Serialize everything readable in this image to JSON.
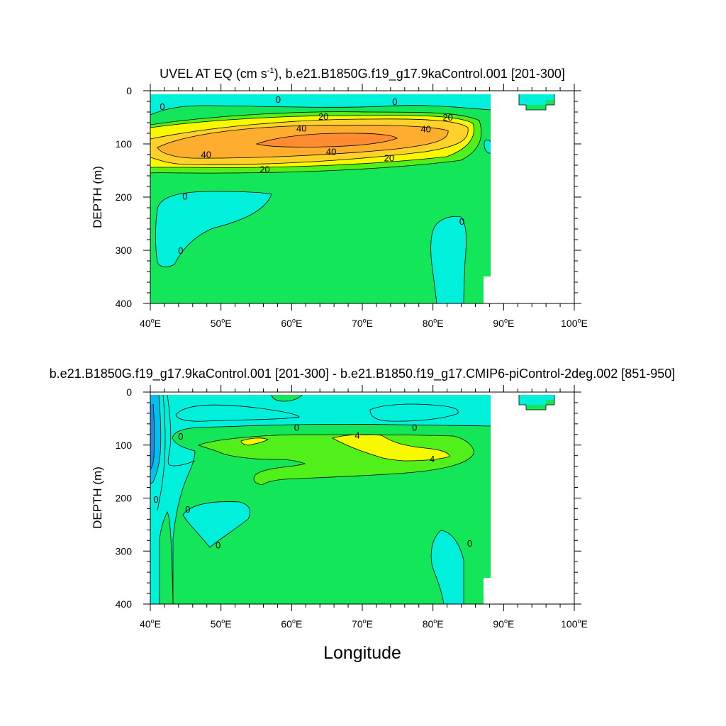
{
  "chart_data": [
    {
      "type": "contour",
      "title_main": "UVEL AT EQ (cm s",
      "title_sup": "-1",
      "title_rest": "), b.e21.B1850G.f19_g17.9kaControl.001 [201-300]",
      "ylabel": "DEPTH (m)",
      "xlabel": "",
      "xlim": [
        40,
        100
      ],
      "ylim": [
        0,
        400
      ],
      "y_inverted": true,
      "xticks": [
        {
          "value": 40,
          "label": "40",
          "suffix": "E"
        },
        {
          "value": 50,
          "label": "50",
          "suffix": "E"
        },
        {
          "value": 60,
          "label": "60",
          "suffix": "E"
        },
        {
          "value": 70,
          "label": "70",
          "suffix": "E"
        },
        {
          "value": 80,
          "label": "80",
          "suffix": "E"
        },
        {
          "value": 90,
          "label": "90",
          "suffix": "E"
        },
        {
          "value": 100,
          "label": "100",
          "suffix": "E"
        }
      ],
      "yticks": [
        "0",
        "100",
        "200",
        "300",
        "400"
      ],
      "contour_labels": [
        {
          "x": 41.7,
          "y": 29,
          "text": "0"
        },
        {
          "x": 58.1,
          "y": 16,
          "text": "0"
        },
        {
          "x": 74.6,
          "y": 20,
          "text": "0"
        },
        {
          "x": 44.9,
          "y": 198,
          "text": "0"
        },
        {
          "x": 44.3,
          "y": 300,
          "text": "0"
        },
        {
          "x": 84.1,
          "y": 245,
          "text": "0"
        },
        {
          "x": 64.5,
          "y": 48,
          "text": "20"
        },
        {
          "x": 82.1,
          "y": 49,
          "text": "20"
        },
        {
          "x": 73.8,
          "y": 126,
          "text": "20"
        },
        {
          "x": 56.2,
          "y": 147,
          "text": "20"
        },
        {
          "x": 61.4,
          "y": 70,
          "text": "40"
        },
        {
          "x": 79.0,
          "y": 71,
          "text": "40"
        },
        {
          "x": 47.9,
          "y": 119,
          "text": "40"
        },
        {
          "x": 65.6,
          "y": 114,
          "text": "40"
        }
      ]
    },
    {
      "type": "contour",
      "title": "b.e21.B1850G.f19_g17.9kaControl.001 [201-300] - b.e21.B1850.f19_g17.CMIP6-piControl-2deg.002 [851-950]",
      "ylabel": "DEPTH (m)",
      "xlabel": "Longitude",
      "xlim": [
        40,
        100
      ],
      "ylim": [
        0,
        400
      ],
      "y_inverted": true,
      "xticks": [
        {
          "value": 40,
          "label": "40",
          "suffix": "E"
        },
        {
          "value": 50,
          "label": "50",
          "suffix": "E"
        },
        {
          "value": 60,
          "label": "60",
          "suffix": "E"
        },
        {
          "value": 70,
          "label": "70",
          "suffix": "E"
        },
        {
          "value": 80,
          "label": "80",
          "suffix": "E"
        },
        {
          "value": 90,
          "label": "90",
          "suffix": "E"
        },
        {
          "value": 100,
          "label": "100",
          "suffix": "E"
        }
      ],
      "yticks": [
        "0",
        "100",
        "200",
        "300",
        "400"
      ],
      "contour_labels": [
        {
          "x": 44.3,
          "y": 83,
          "text": "0"
        },
        {
          "x": 60.7,
          "y": 66,
          "text": "0"
        },
        {
          "x": 77.4,
          "y": 66,
          "text": "0"
        },
        {
          "x": 40.8,
          "y": 202,
          "text": "0"
        },
        {
          "x": 45.3,
          "y": 221,
          "text": "0"
        },
        {
          "x": 49.6,
          "y": 288,
          "text": "0"
        },
        {
          "x": 85.2,
          "y": 285,
          "text": "0"
        },
        {
          "x": 69.3,
          "y": 81,
          "text": "4"
        },
        {
          "x": 79.9,
          "y": 126,
          "text": "4"
        }
      ]
    }
  ],
  "colors": {
    "cyan": "#00f0dc",
    "green": "#14e65a",
    "lime": "#52f01a",
    "yellow": "#f8f800",
    "gold": "#ffd12a",
    "orange": "#ffad2f",
    "darkorange": "#ff8c32",
    "lightblue": "#00c0f0",
    "blue": "#1a8ce6"
  }
}
